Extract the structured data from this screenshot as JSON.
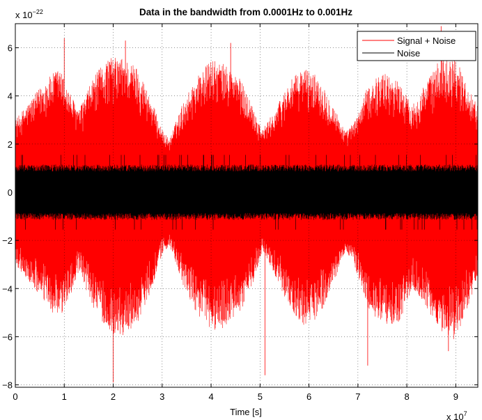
{
  "chart_data": {
    "type": "line",
    "title": "Data in the bandwidth from 0.0001Hz to 0.001Hz",
    "xlabel": "Time [s]",
    "ylabel": "",
    "x_exponent_label": "x 10",
    "x_exponent_power": "7",
    "y_exponent_label": "x 10",
    "y_exponent_power": "−22",
    "xlim": [
      0,
      9.45
    ],
    "ylim": [
      -8.1,
      7
    ],
    "xticks": [
      0,
      1,
      2,
      3,
      4,
      5,
      6,
      7,
      8,
      9
    ],
    "xtick_labels": [
      "0",
      "1",
      "2",
      "3",
      "4",
      "5",
      "6",
      "7",
      "8",
      "9"
    ],
    "yticks": [
      -8,
      -6,
      -4,
      -2,
      0,
      2,
      4,
      6
    ],
    "ytick_labels": [
      "−8",
      "−6",
      "−4",
      "−2",
      "0",
      "2",
      "4",
      "6"
    ],
    "grid": true,
    "legend_position": "top-right",
    "series": [
      {
        "name": "Signal + Noise",
        "color": "#ff0000",
        "envelope": {
          "x": [
            0.0,
            0.3,
            0.6,
            0.9,
            1.1,
            1.3,
            1.6,
            1.9,
            2.2,
            2.5,
            2.75,
            3.0,
            3.15,
            3.4,
            3.7,
            4.0,
            4.3,
            4.6,
            4.85,
            5.05,
            5.3,
            5.6,
            5.9,
            6.2,
            6.5,
            6.75,
            6.95,
            7.2,
            7.5,
            7.85,
            8.1,
            8.4,
            8.7,
            9.0,
            9.2,
            9.45
          ],
          "upper": [
            3.0,
            3.8,
            4.6,
            5.2,
            4.2,
            3.4,
            4.8,
            5.6,
            5.6,
            5.2,
            4.0,
            2.6,
            2.2,
            3.6,
            4.8,
            5.5,
            5.3,
            4.7,
            3.6,
            2.6,
            3.4,
            4.6,
            5.2,
            4.8,
            3.6,
            2.5,
            3.0,
            4.4,
            5.0,
            4.6,
            3.6,
            4.6,
            5.6,
            5.6,
            4.6,
            3.6
          ],
          "lower": [
            -3.0,
            -3.8,
            -4.6,
            -5.4,
            -4.4,
            -3.4,
            -4.8,
            -5.8,
            -6.0,
            -5.4,
            -4.2,
            -2.6,
            -2.2,
            -3.8,
            -5.0,
            -5.8,
            -5.6,
            -5.0,
            -3.8,
            -2.4,
            -3.4,
            -4.8,
            -5.6,
            -5.2,
            -3.8,
            -2.4,
            -3.2,
            -4.8,
            -5.6,
            -5.4,
            -4.0,
            -4.8,
            -5.8,
            -6.2,
            -5.0,
            -3.6
          ],
          "core_gap": 1.0
        },
        "spikes": [
          {
            "x": 2.0,
            "y": -7.9
          },
          {
            "x": 5.1,
            "y": -7.6
          },
          {
            "x": 7.2,
            "y": -7.2
          },
          {
            "x": 8.7,
            "y": 6.9
          },
          {
            "x": 2.25,
            "y": 6.3
          },
          {
            "x": 4.4,
            "y": 6.2
          },
          {
            "x": 1.0,
            "y": 6.4
          },
          {
            "x": 8.85,
            "y": -6.6
          }
        ]
      },
      {
        "name": "Noise",
        "color": "#000000",
        "envelope": {
          "amplitude": 1.15,
          "spike_amplitude": 1.55
        }
      }
    ]
  }
}
